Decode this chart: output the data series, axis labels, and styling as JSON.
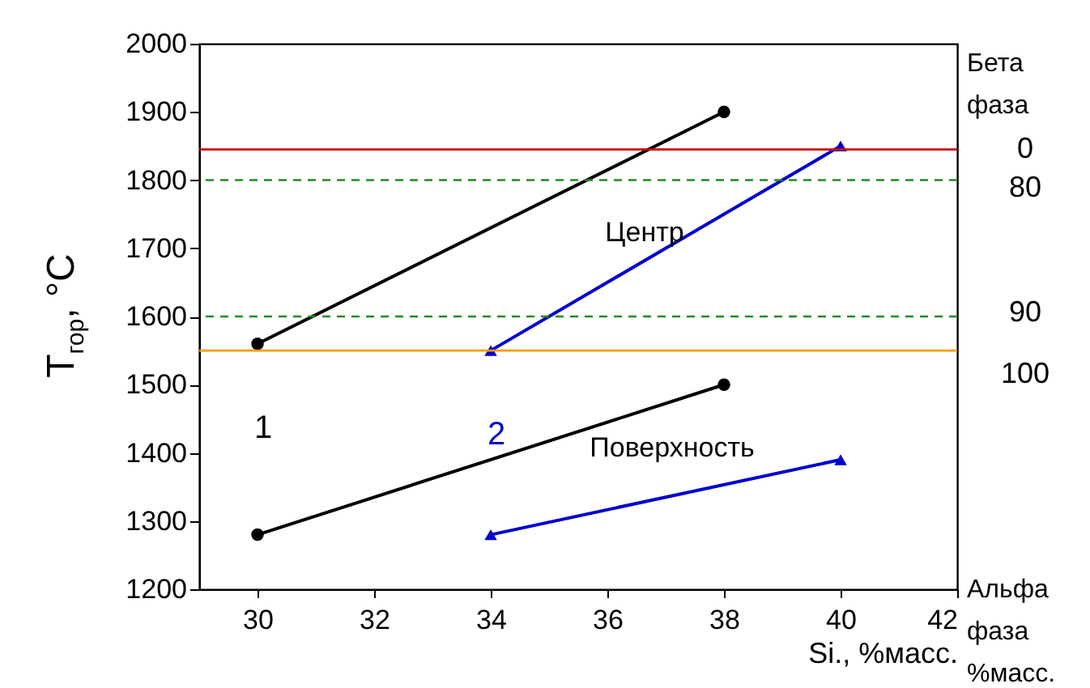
{
  "chart_data": {
    "type": "line",
    "xlabel": "Si., %масс.",
    "ylabel": "T$_{гор}$, °C",
    "xlim": [
      29,
      42
    ],
    "xticks": [
      30,
      32,
      34,
      36,
      38,
      40,
      42
    ],
    "ylim": [
      1200,
      2000
    ],
    "yticks": [
      1200,
      1300,
      1400,
      1500,
      1600,
      1700,
      1800,
      1900,
      2000
    ],
    "series": [
      {
        "name": "1",
        "color": "#000000",
        "marker": "circle",
        "x": [
          30,
          38
        ],
        "values": [
          1560,
          1900
        ]
      },
      {
        "name": "2",
        "color": "#0000cc",
        "marker": "triangle",
        "x": [
          34,
          40
        ],
        "values": [
          1550,
          1850
        ]
      },
      {
        "color": "#000000",
        "marker": "circle",
        "x": [
          30,
          38
        ],
        "values": [
          1280,
          1500
        ]
      },
      {
        "color": "#0000cc",
        "marker": "triangle",
        "x": [
          34,
          40
        ],
        "values": [
          1280,
          1390
        ]
      }
    ],
    "ref_lines": [
      {
        "axis": "y",
        "value": 1845,
        "color": "#cc0000",
        "line_style": "solid"
      },
      {
        "axis": "y",
        "value": 1800,
        "color": "#228b22",
        "line_style": "dashed"
      },
      {
        "axis": "y",
        "value": 1600,
        "color": "#228b22",
        "line_style": "dashed"
      },
      {
        "axis": "y",
        "value": 1550,
        "color": "#ff9900",
        "line_style": "solid"
      }
    ],
    "annotations": [
      "Центр",
      "Поверхность",
      "Бета фаза",
      "Альфа фаза %масс.",
      "0",
      "80",
      "90",
      "100"
    ],
    "grid": false,
    "legend": false
  }
}
